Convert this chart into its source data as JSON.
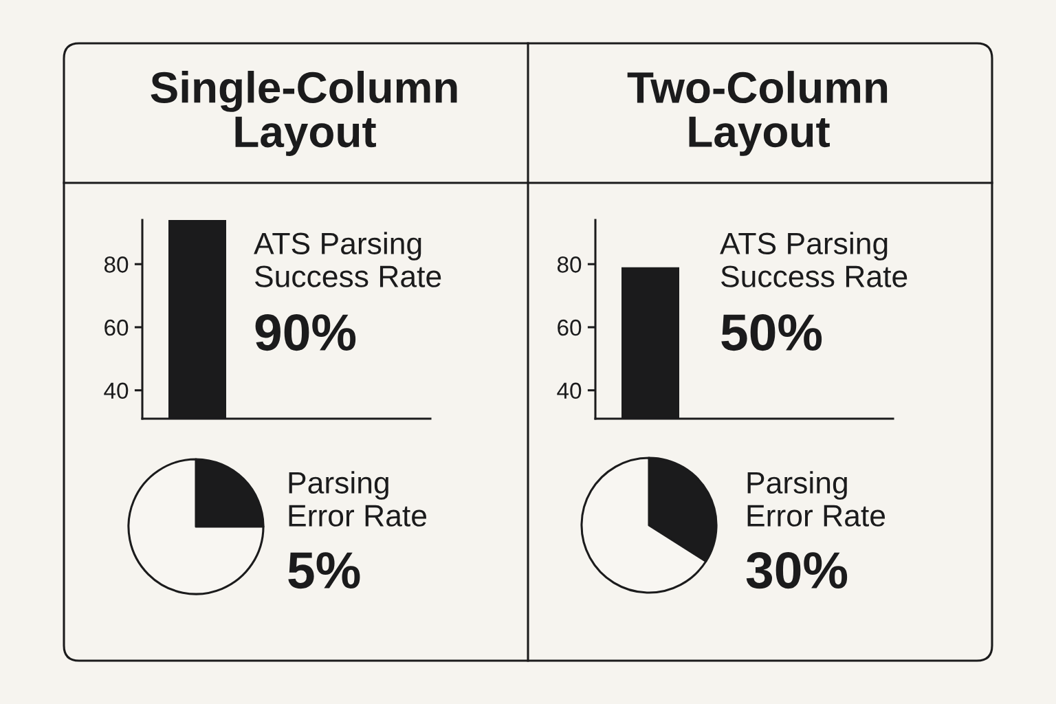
{
  "chart_data": [
    {
      "type": "bar",
      "title": "Single-Column\nLayout",
      "categories": [
        null
      ],
      "values": [
        94
      ],
      "color": "#1b1b1c",
      "ylim": [
        31,
        94
      ],
      "yticks": [
        40,
        60,
        80
      ],
      "tick_labels": "y",
      "annotations": [
        "ATS Parsing\nSuccess Rate",
        "90%"
      ]
    },
    {
      "type": "pie",
      "categories": [
        null,
        null
      ],
      "values": [
        25,
        75
      ],
      "colors": [
        "#1b1b1c",
        "#f8f6f2"
      ],
      "annotations": [
        "Parsing\nError Rate",
        "5%"
      ]
    },
    {
      "type": "bar",
      "title": "Two-Column\nLayout",
      "categories": [
        null
      ],
      "values": [
        79
      ],
      "color": "#1b1b1c",
      "ylim": [
        31,
        94
      ],
      "yticks": [
        40,
        60,
        80
      ],
      "tick_labels": "y",
      "annotations": [
        "ATS Parsing\nSuccess Rate",
        "50%"
      ]
    },
    {
      "type": "pie",
      "categories": [
        null,
        null
      ],
      "values": [
        34,
        66
      ],
      "colors": [
        "#1b1b1c",
        "#f8f6f2"
      ],
      "annotations": [
        "Parsing\nError Rate",
        "30%"
      ]
    }
  ]
}
